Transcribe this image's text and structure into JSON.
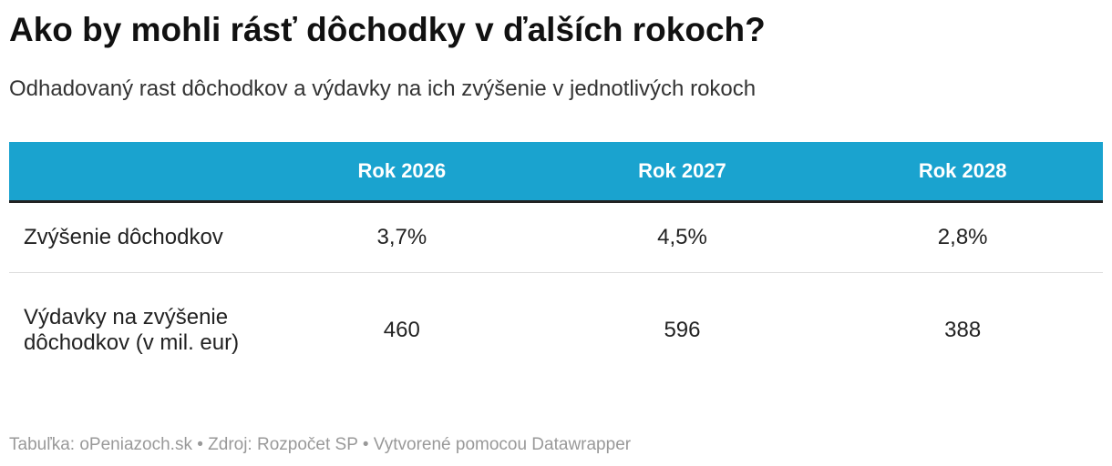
{
  "header": {
    "title": "Ako by mohli rásť dôchodky v ďalších rokoch?",
    "subtitle": "Odhadovaný rast dôchodkov a výdavky na ich zvýšenie v jednotlivých rokoch"
  },
  "table": {
    "columns": [
      "Rok 2026",
      "Rok 2027",
      "Rok 2028"
    ],
    "rows": [
      [
        "Zvýšenie dôchodkov",
        "3,7%",
        "4,5%",
        "2,8%"
      ],
      [
        "Výdavky na zvýšenie dôchodkov (v mil. eur)",
        "460",
        "596",
        "388"
      ]
    ]
  },
  "footer": "Tabuľka: oPeniazoch.sk • Zdroj: Rozpočet SP • Vytvorené pomocou Datawrapper"
}
